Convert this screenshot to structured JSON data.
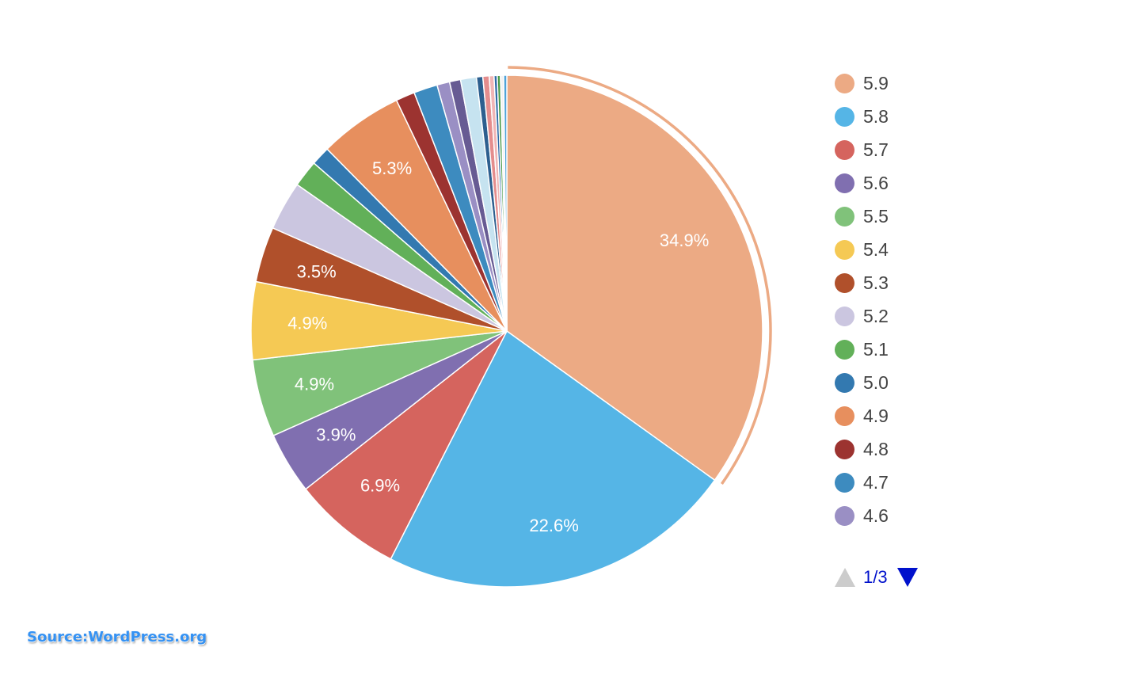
{
  "chart_data": {
    "type": "pie",
    "slices": [
      {
        "name": "5.9",
        "value": 34.9,
        "color": "#ecaa84",
        "label": "34.9%"
      },
      {
        "name": "5.8",
        "value": 22.6,
        "color": "#55b5e6",
        "label": "22.6%"
      },
      {
        "name": "5.7",
        "value": 6.9,
        "color": "#d5645e",
        "label": "6.9%"
      },
      {
        "name": "5.6",
        "value": 3.9,
        "color": "#806fb0",
        "label": "3.9%"
      },
      {
        "name": "5.5",
        "value": 4.9,
        "color": "#80c27a",
        "label": "4.9%"
      },
      {
        "name": "5.4",
        "value": 4.9,
        "color": "#f5c954",
        "label": "4.9%"
      },
      {
        "name": "5.3",
        "value": 3.5,
        "color": "#b0502b",
        "label": "3.5%"
      },
      {
        "name": "5.2",
        "value": 3.1,
        "color": "#cbc6e0"
      },
      {
        "name": "5.1",
        "value": 1.7,
        "color": "#62b059"
      },
      {
        "name": "5.0",
        "value": 1.2,
        "color": "#3379b0"
      },
      {
        "name": "4.9",
        "value": 5.3,
        "color": "#e78f5e",
        "label": "5.3%"
      },
      {
        "name": "4.8",
        "value": 1.2,
        "color": "#9c3330"
      },
      {
        "name": "4.7",
        "value": 1.5,
        "color": "#3d8bbf"
      },
      {
        "name": "4.6",
        "value": 0.8,
        "color": "#9a8fc4"
      },
      {
        "value": 0.7,
        "color": "#675b93"
      },
      {
        "value": 1.0,
        "color": "#c6e3f0"
      },
      {
        "value": 0.4,
        "color": "#2d5f8f"
      },
      {
        "value": 0.4,
        "color": "#e48d8d"
      },
      {
        "value": 0.3,
        "color": "#f0b5b5"
      },
      {
        "value": 0.2,
        "color": "#2d69a6"
      },
      {
        "value": 0.2,
        "color": "#4a9a48"
      },
      {
        "value": 0.2,
        "color": "#f2f2f2"
      },
      {
        "value": 0.2,
        "color": "#4fa3d8"
      }
    ],
    "highlighted": "5.9",
    "legend_position": "right"
  },
  "legend": {
    "items": [
      "5.9",
      "5.8",
      "5.7",
      "5.6",
      "5.5",
      "5.4",
      "5.3",
      "5.2",
      "5.1",
      "5.0",
      "4.9",
      "4.8",
      "4.7",
      "4.6"
    ],
    "page": "1/3"
  },
  "source": "Source:WordPress.org"
}
